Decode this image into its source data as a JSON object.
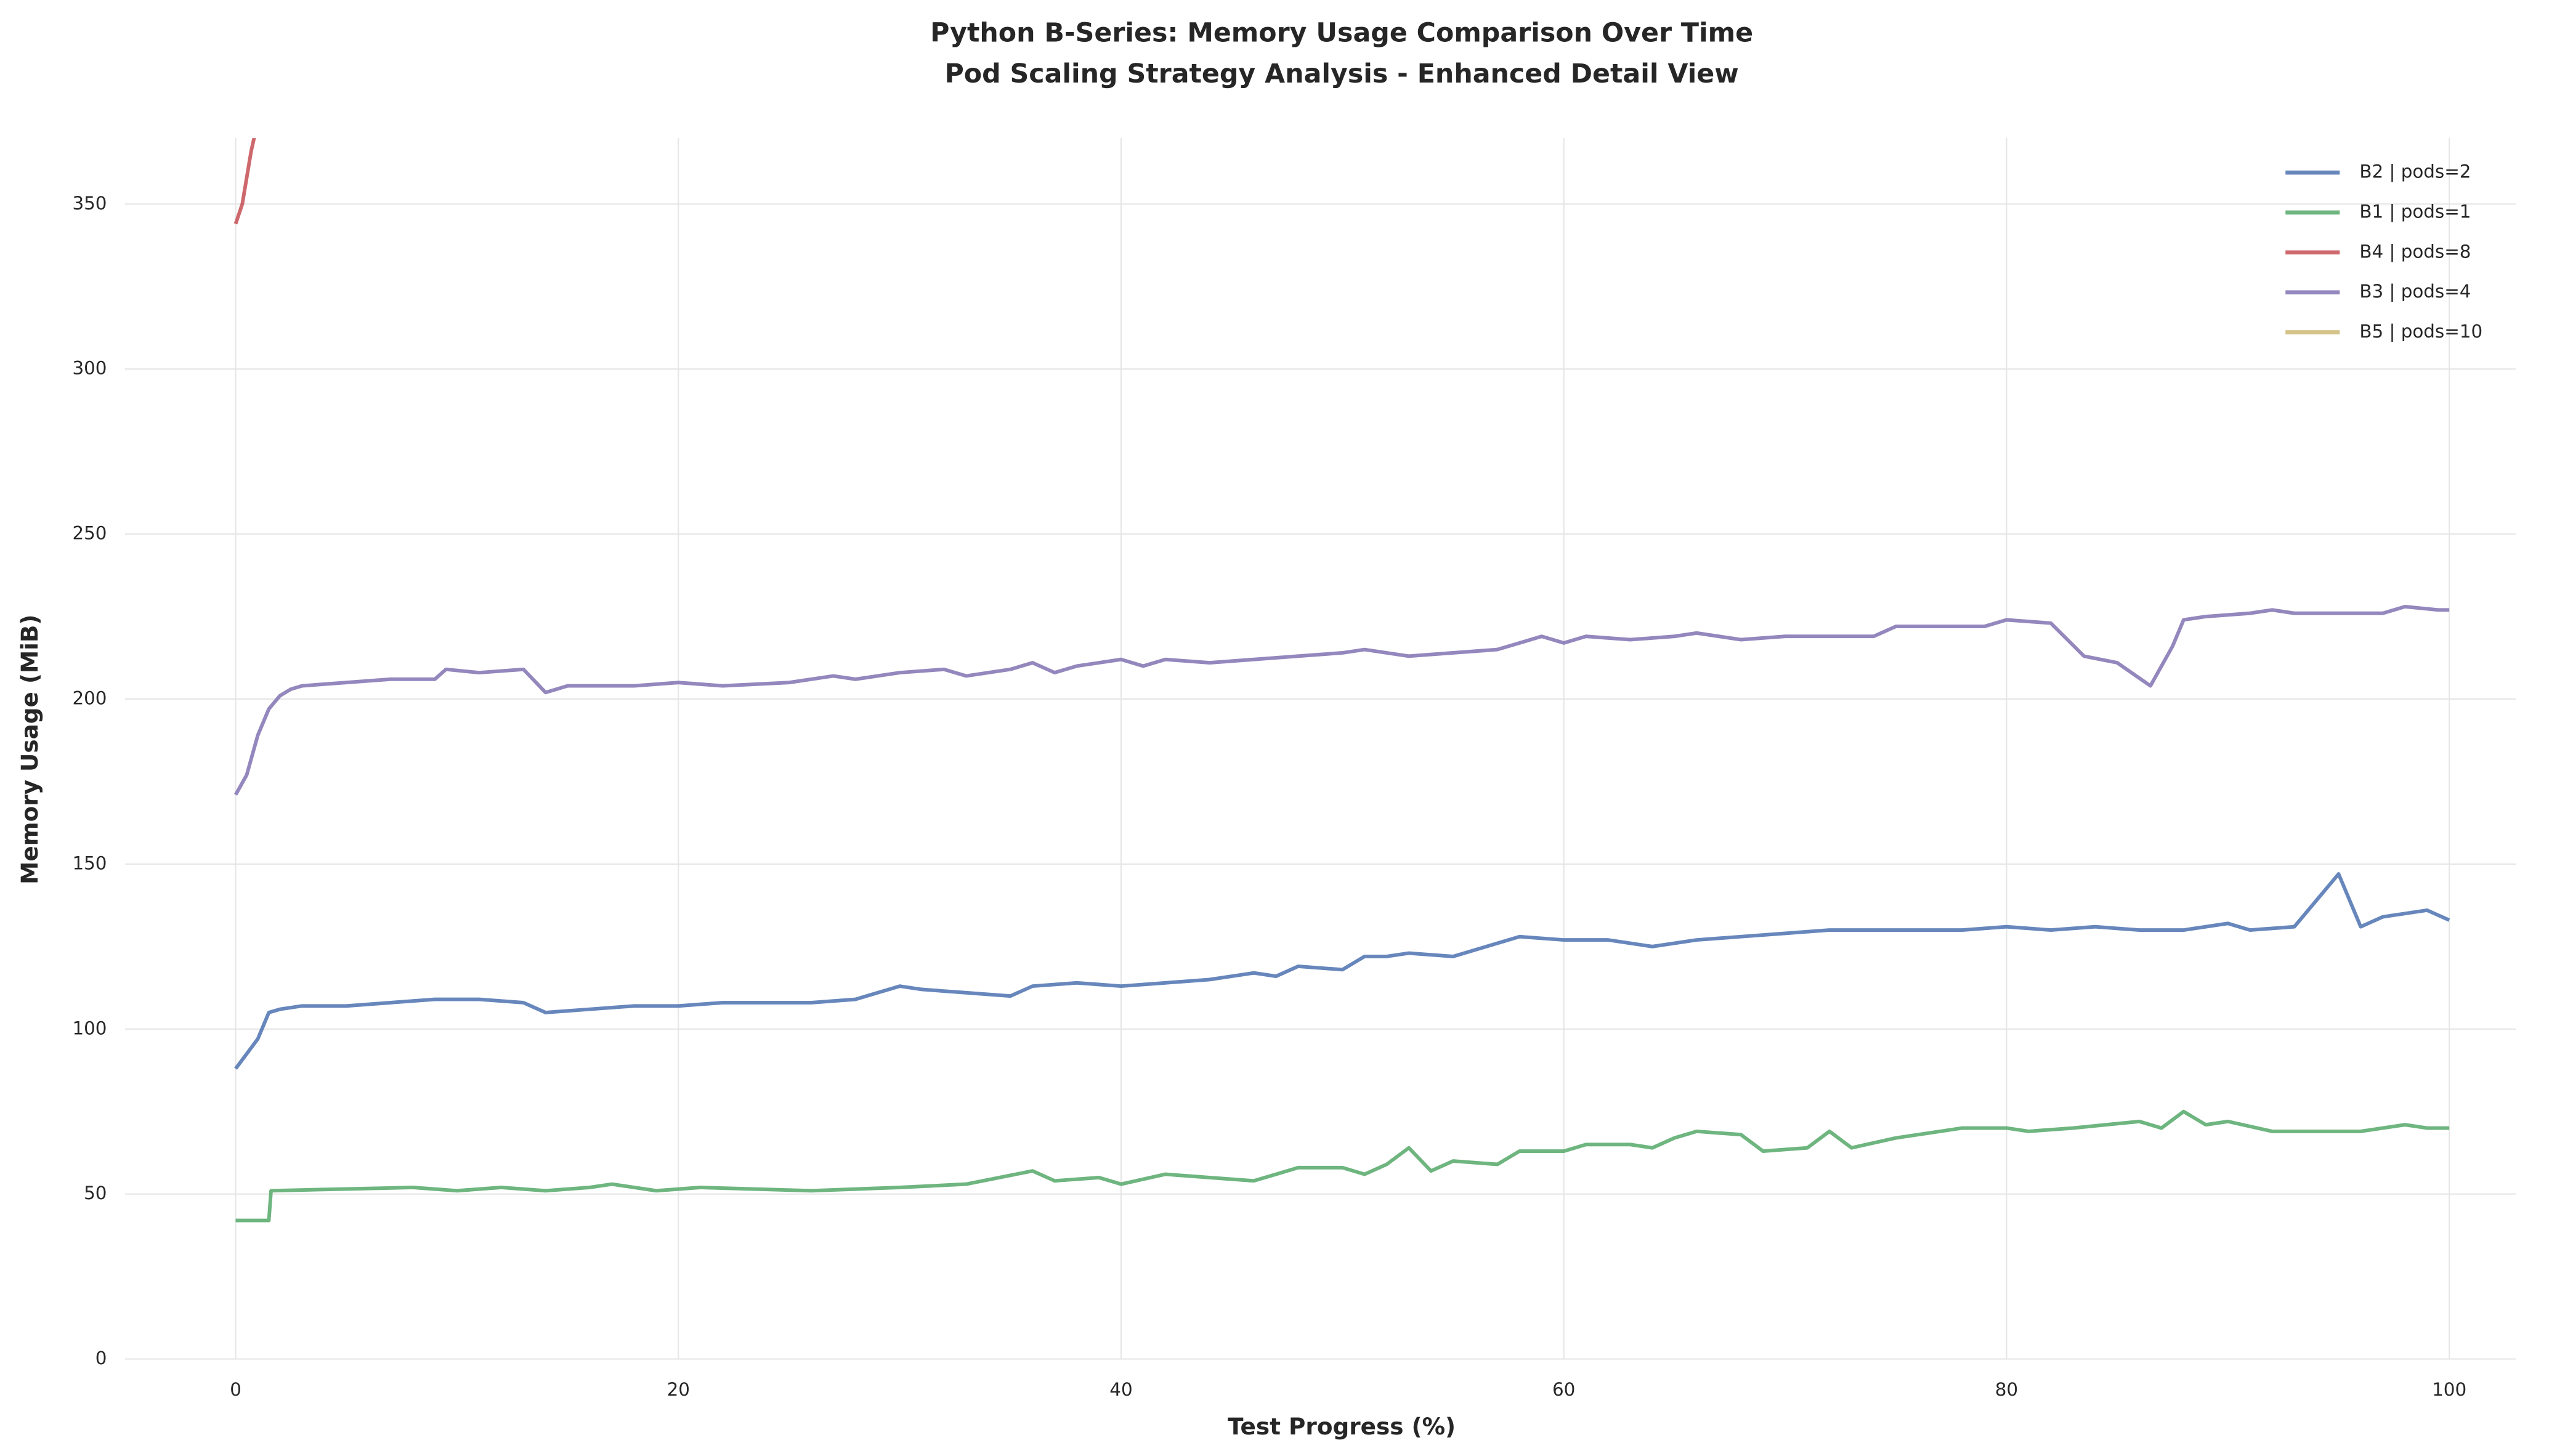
{
  "chart_data": {
    "type": "line",
    "title": "Python B-Series: Memory Usage Comparison Over Time",
    "subtitle": "Pod Scaling Strategy Analysis - Enhanced Detail View",
    "x_label": "Test Progress (%)",
    "y_label": "Memory Usage (MiB)",
    "xlim": [
      -5,
      103
    ],
    "ylim": [
      0,
      370
    ],
    "xticks": [
      0,
      20,
      40,
      60,
      80,
      100
    ],
    "yticks": [
      0,
      50,
      100,
      150,
      200,
      250,
      300,
      350
    ],
    "grid": true,
    "legend": "upper right",
    "series": [
      {
        "name": "B2 | pods=2",
        "color": "#4c72b0",
        "x": [
          0,
          1,
          1.5,
          2,
          3,
          5,
          7,
          9,
          11,
          13,
          14,
          16,
          18,
          20,
          22,
          24,
          26,
          28,
          30,
          31,
          33,
          35,
          36,
          38,
          40,
          42,
          44,
          46,
          47,
          48,
          50,
          51,
          52,
          53,
          55,
          56,
          58,
          60,
          62,
          64,
          66,
          68,
          70,
          72,
          74,
          76,
          78,
          80,
          82,
          84,
          86,
          88,
          90,
          91,
          93,
          95,
          96,
          97,
          99,
          100
        ],
        "values": [
          88,
          97,
          105,
          106,
          107,
          107,
          108,
          109,
          109,
          108,
          105,
          106,
          107,
          107,
          108,
          108,
          108,
          109,
          113,
          112,
          111,
          110,
          113,
          114,
          113,
          114,
          115,
          117,
          116,
          119,
          118,
          122,
          122,
          123,
          122,
          124,
          128,
          127,
          127,
          125,
          127,
          128,
          129,
          130,
          130,
          130,
          130,
          131,
          130,
          131,
          130,
          130,
          132,
          130,
          131,
          147,
          131,
          134,
          136,
          133
        ]
      },
      {
        "name": "B1 | pods=1",
        "color": "#55a868",
        "x": [
          0,
          1.5,
          1.6,
          8,
          10,
          12,
          14,
          16,
          17,
          19,
          21,
          26,
          30,
          33,
          36,
          37,
          39,
          40,
          42,
          44,
          46,
          47,
          48,
          50,
          51,
          52,
          53,
          54,
          55,
          57,
          58,
          60,
          61,
          63,
          64,
          65,
          66,
          68,
          69,
          71,
          72,
          73,
          75,
          76,
          78,
          80,
          81,
          83,
          86,
          87,
          88,
          89,
          90,
          92,
          94,
          96,
          98,
          99,
          100
        ],
        "values": [
          42,
          42,
          51,
          52,
          51,
          52,
          51,
          52,
          53,
          51,
          52,
          51,
          52,
          53,
          57,
          54,
          55,
          53,
          56,
          55,
          54,
          56,
          58,
          58,
          56,
          59,
          64,
          57,
          60,
          59,
          63,
          63,
          65,
          65,
          64,
          67,
          69,
          68,
          63,
          64,
          69,
          64,
          67,
          68,
          70,
          70,
          69,
          70,
          72,
          70,
          75,
          71,
          72,
          69,
          69,
          69,
          71,
          70,
          70
        ]
      },
      {
        "name": "B4 | pods=8",
        "color": "#c44e52",
        "x": [
          0,
          0.3,
          0.7,
          0.9
        ],
        "values": [
          344,
          350,
          366,
          372
        ]
      },
      {
        "name": "B3 | pods=4",
        "color": "#8172b2",
        "x": [
          0,
          0.5,
          1,
          1.5,
          2,
          2.5,
          3,
          7,
          9,
          9.5,
          11,
          13,
          14,
          15,
          18,
          20,
          22,
          25,
          27,
          28,
          30,
          32,
          33,
          35,
          36,
          37,
          38,
          40,
          41,
          42,
          44,
          46,
          48,
          50,
          51,
          53,
          55,
          57,
          58,
          59,
          60,
          61,
          63,
          65,
          66,
          68,
          70,
          72,
          74,
          75,
          77,
          79,
          80,
          82,
          83.5,
          85,
          86.5,
          87.5,
          88,
          89,
          91,
          92,
          93,
          95,
          97,
          98,
          99.5,
          100
        ],
        "values": [
          171,
          177,
          189,
          197,
          201,
          203,
          204,
          206,
          206,
          209,
          208,
          209,
          202,
          204,
          204,
          205,
          204,
          205,
          207,
          206,
          208,
          209,
          207,
          209,
          211,
          208,
          210,
          212,
          210,
          212,
          211,
          212,
          213,
          214,
          215,
          213,
          214,
          215,
          217,
          219,
          217,
          219,
          218,
          219,
          220,
          218,
          219,
          219,
          219,
          222,
          222,
          222,
          224,
          223,
          213,
          211,
          204,
          216,
          224,
          225,
          226,
          227,
          226,
          226,
          226,
          228,
          227,
          227
        ]
      },
      {
        "name": "B5 | pods=10",
        "color": "#ccb974",
        "x": [],
        "values": []
      }
    ]
  }
}
